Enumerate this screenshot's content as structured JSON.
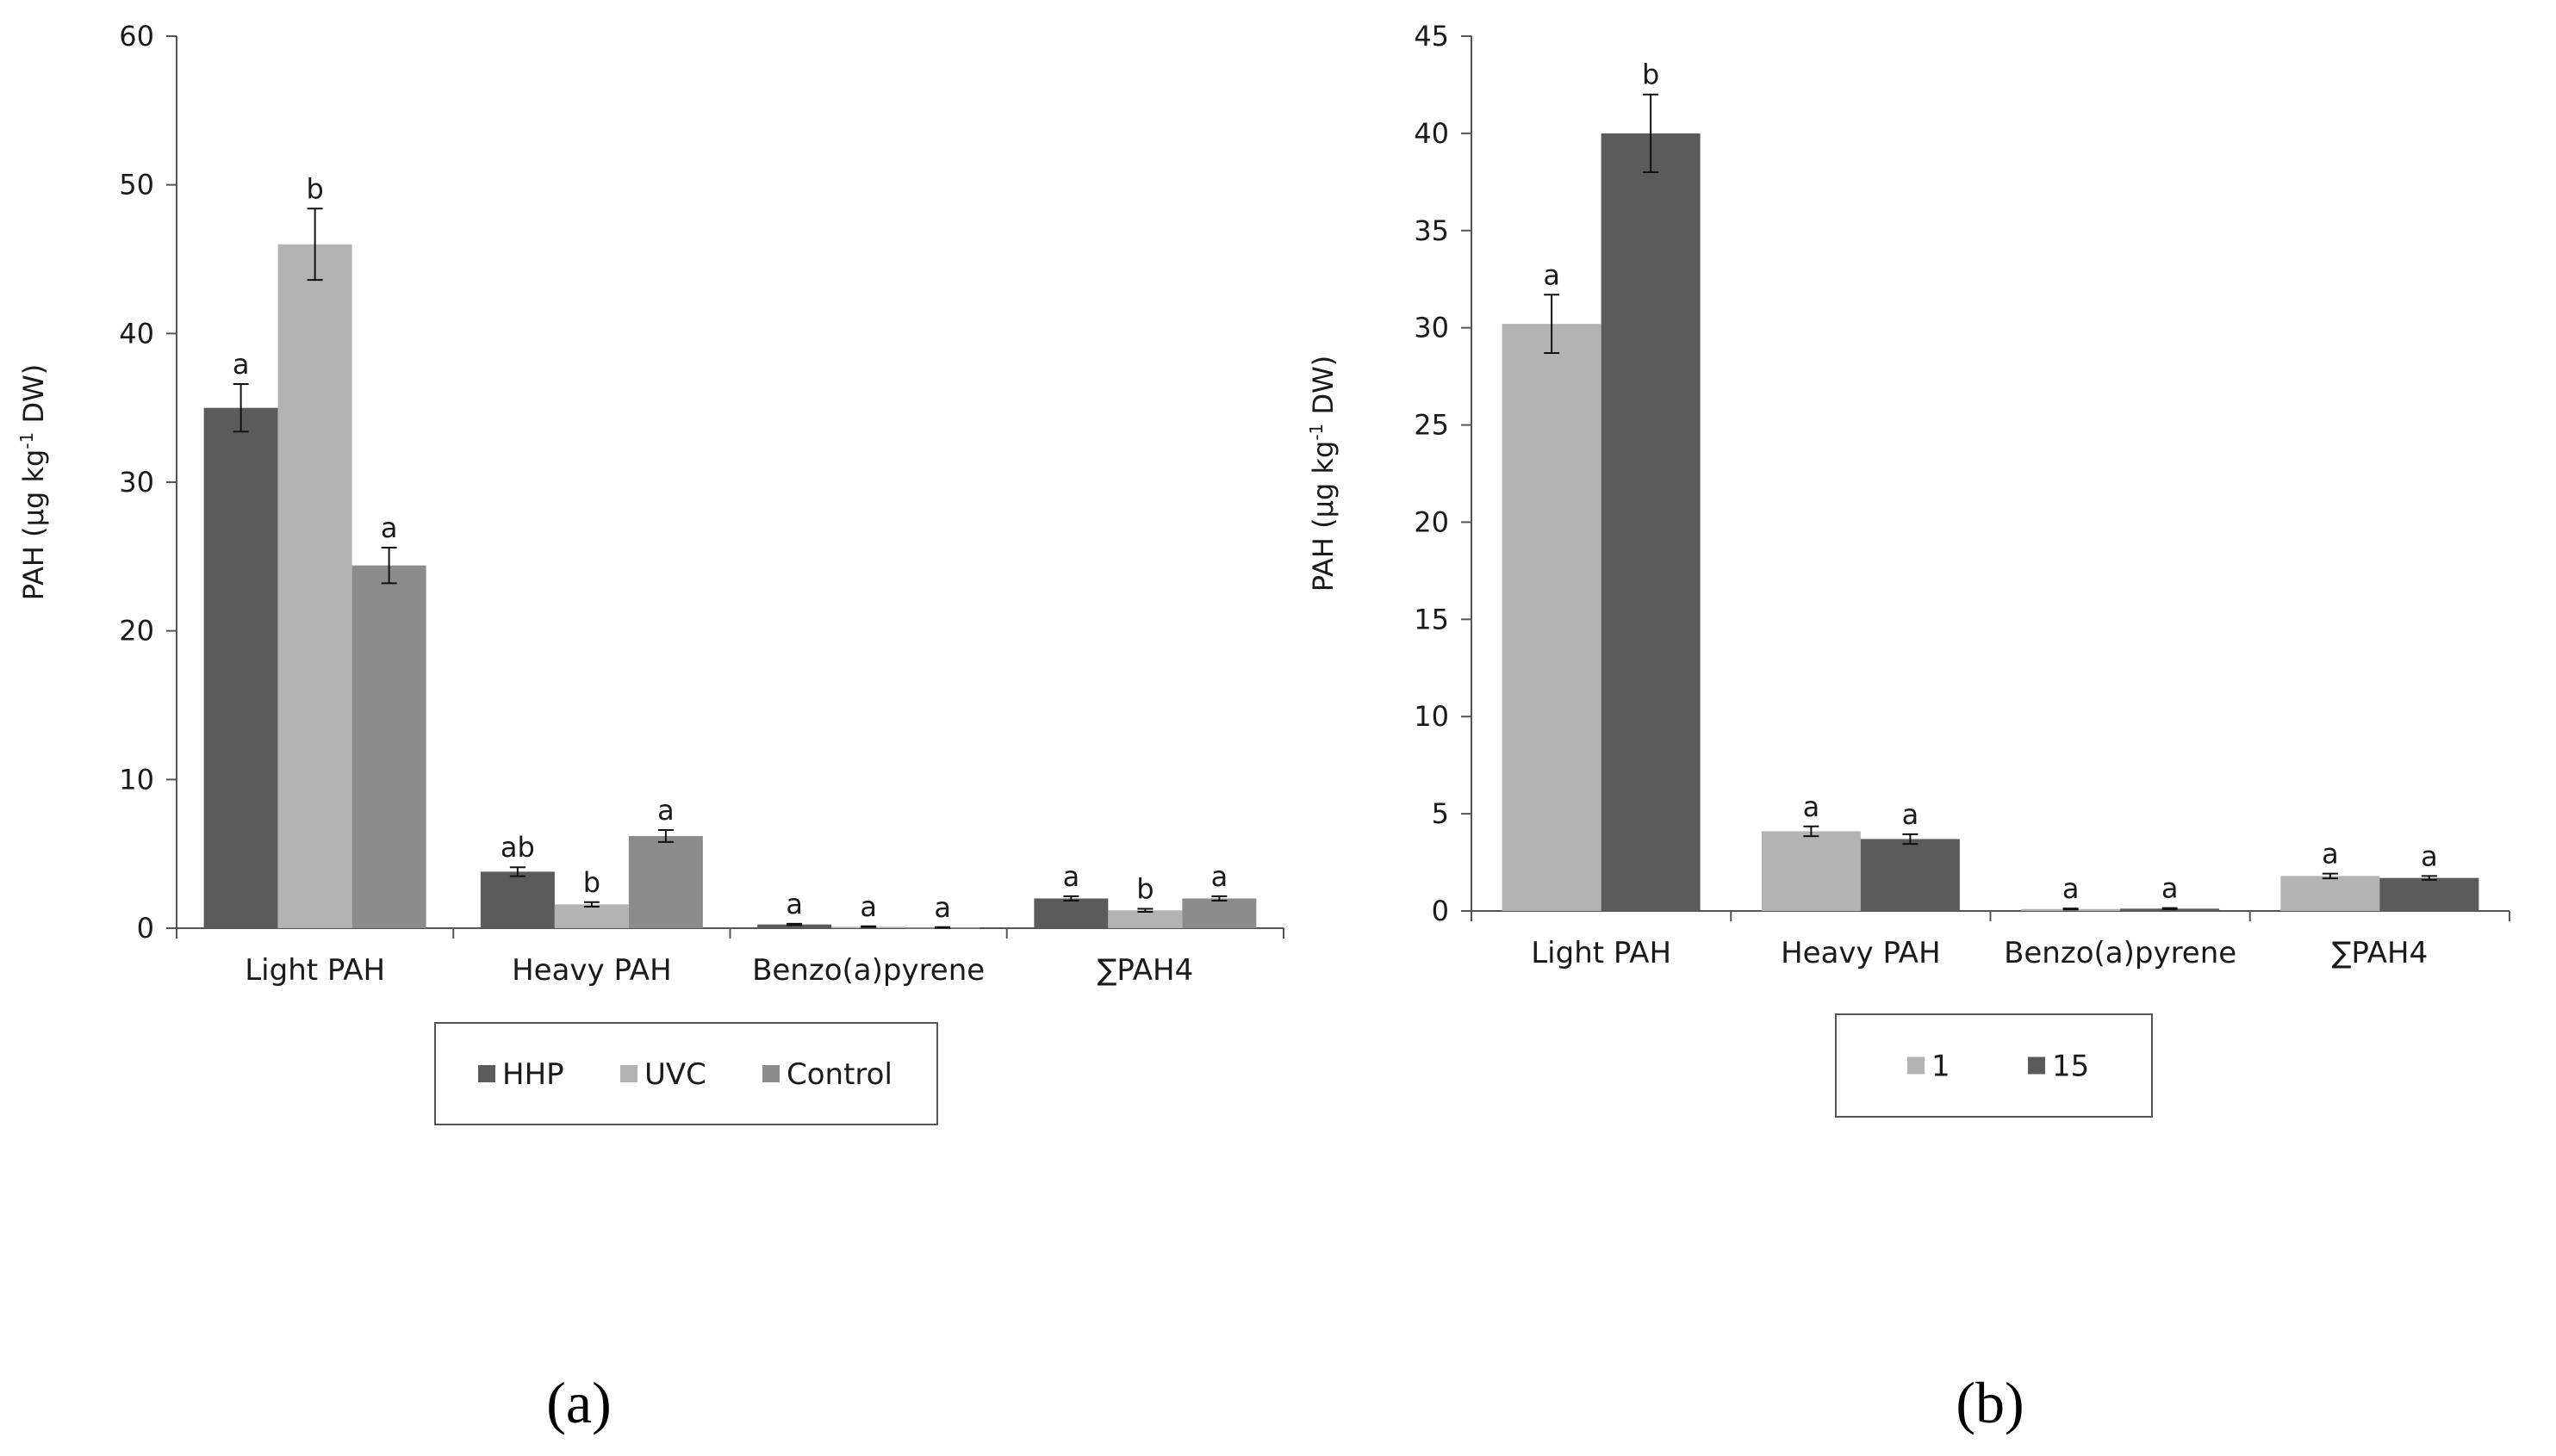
{
  "chart_data": [
    {
      "type": "bar",
      "panel_label": "(a)",
      "categories": [
        "Light PAH",
        "Heavy PAH",
        "Benzo(a)pyrene",
        "∑PAH4"
      ],
      "ylabel_main": "PAH (µg kg",
      "ylabel_sup": "-1",
      "ylabel_end": " DW)",
      "ylim": [
        0,
        60
      ],
      "yticks": [
        0,
        10,
        20,
        30,
        40,
        50,
        60
      ],
      "legend_position": "bottom-center",
      "series": [
        {
          "name": "HHP",
          "color": "#5b5b5b",
          "values": [
            35,
            3.8,
            0.25,
            2.0
          ],
          "errors": [
            1.6,
            0.3,
            0.05,
            0.15
          ],
          "letters": [
            "a",
            "ab",
            "a",
            "a"
          ]
        },
        {
          "name": "UVC",
          "color": "#b3b3b3",
          "values": [
            46,
            1.6,
            0.1,
            1.2
          ],
          "errors": [
            2.4,
            0.15,
            0.03,
            0.1
          ],
          "letters": [
            "b",
            "b",
            "a",
            "b"
          ]
        },
        {
          "name": "Control",
          "color": "#8c8c8c",
          "values": [
            24.4,
            6.2,
            0.05,
            2.0
          ],
          "errors": [
            1.2,
            0.4,
            0.02,
            0.15
          ],
          "letters": [
            "a",
            "a",
            "a",
            "a"
          ]
        }
      ]
    },
    {
      "type": "bar",
      "panel_label": "(b)",
      "categories": [
        "Light PAH",
        "Heavy PAH",
        "Benzo(a)pyrene",
        "∑PAH4"
      ],
      "ylabel_main": "PAH (µg kg",
      "ylabel_sup": "-1",
      "ylabel_end": " DW)",
      "ylim": [
        0,
        45
      ],
      "yticks": [
        0,
        5,
        10,
        15,
        20,
        25,
        30,
        35,
        40,
        45
      ],
      "legend_position": "bottom-center",
      "series": [
        {
          "name": "1",
          "color": "#b3b3b3",
          "values": [
            30.2,
            4.1,
            0.1,
            1.8
          ],
          "errors": [
            1.5,
            0.25,
            0.03,
            0.12
          ],
          "letters": [
            "a",
            "a",
            "a",
            "a"
          ]
        },
        {
          "name": "15",
          "color": "#5b5b5b",
          "values": [
            40.0,
            3.7,
            0.12,
            1.7
          ],
          "errors": [
            2.0,
            0.25,
            0.03,
            0.1
          ],
          "letters": [
            "b",
            "a",
            "a",
            "a"
          ]
        }
      ]
    }
  ]
}
